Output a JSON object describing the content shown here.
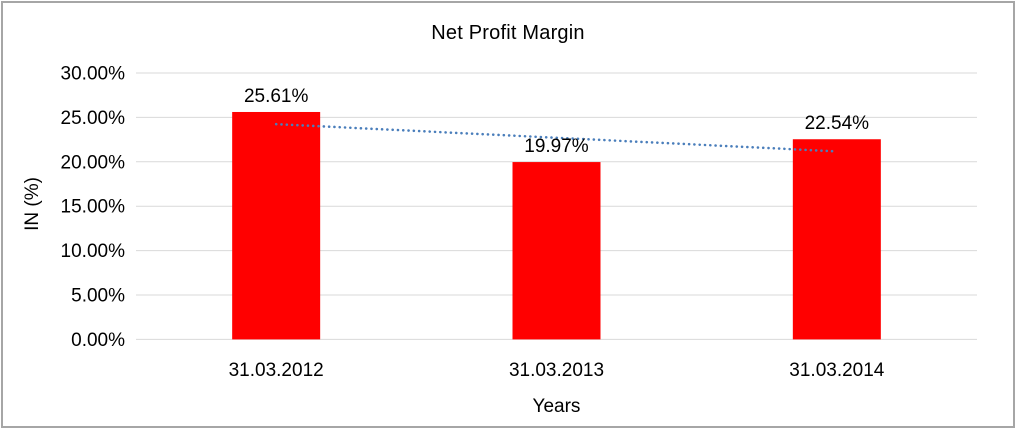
{
  "chart_data": {
    "type": "bar",
    "title": "Net Profit Margin",
    "xlabel": "Years",
    "ylabel": "IN (%)",
    "categories": [
      "31.03.2012",
      "31.03.2013",
      "31.03.2014"
    ],
    "series": [
      {
        "name": "Net Profit Margin",
        "values": [
          25.61,
          19.97,
          22.54
        ]
      }
    ],
    "data_labels": [
      "25.61%",
      "19.97%",
      "22.54%"
    ],
    "ylim": [
      0,
      30
    ],
    "ytick_step": 5,
    "ytick_labels": [
      "0.00%",
      "5.00%",
      "10.00%",
      "15.00%",
      "20.00%",
      "25.00%",
      "30.00%"
    ],
    "grid": true,
    "legend": "none",
    "bar_color": "#FF0000",
    "gridline_color": "#D9D9D9",
    "frame_color": "#A6A6A6",
    "trendline": {
      "type": "linear",
      "style": "dotted",
      "color": "#4A7EBB",
      "start_value": 24.24,
      "end_value": 21.17
    }
  }
}
